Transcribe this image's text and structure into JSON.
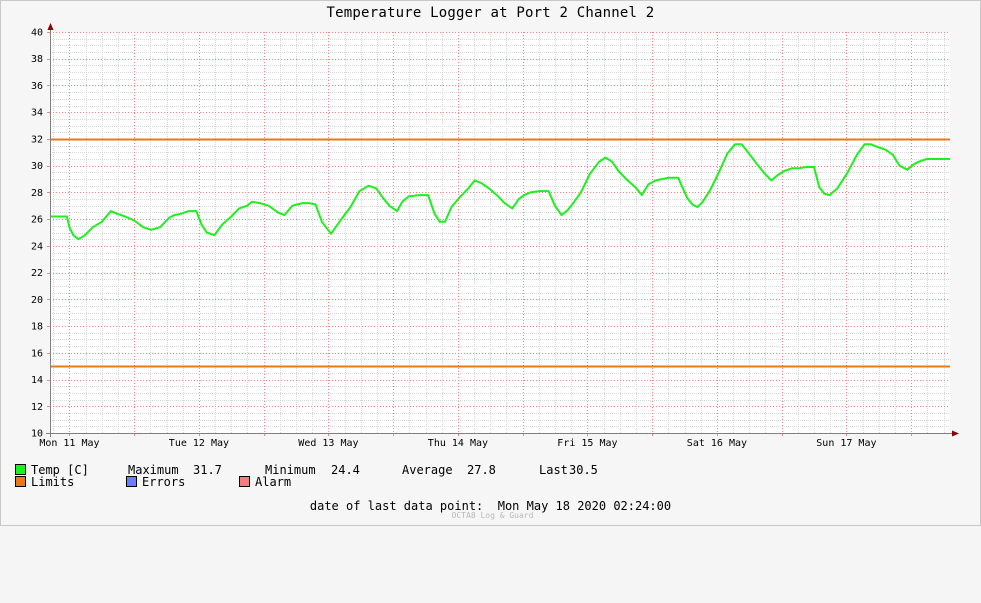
{
  "title": "Temperature Logger at Port 2 Channel 2",
  "colors": {
    "series": "#1ef01e",
    "limits": "#e87a1b",
    "errors": "#6a7fff",
    "alarm": "#f08080",
    "grid_major": "#ff8080",
    "grid_minor": "#d8d8d8",
    "axis": "#808080",
    "arrow": "#8b0000"
  },
  "legend": {
    "temp_label": "Temp [C]",
    "limits_label": "Limits",
    "errors_label": "Errors",
    "alarm_label": "Alarm"
  },
  "stats": {
    "max_label": "Maximum",
    "max_value": "31.7",
    "min_label": "Minimum",
    "min_value": "24.4",
    "avg_label": "Average",
    "avg_value": "27.8",
    "last_label": "Last",
    "last_value": "30.5"
  },
  "footer": {
    "last_date_label": "date of last data point:",
    "last_date_value": "Mon May 18 2020 02:24:00",
    "watermark": "OCTA8 Log & Guard"
  },
  "chart_data": {
    "type": "line",
    "title": "Temperature Logger at Port 2 Channel 2",
    "x_unit": "days from Mon May 11 00:00",
    "xlim": [
      -0.15,
      6.8
    ],
    "ylim": [
      10,
      40
    ],
    "y_ticks": [
      10,
      12,
      14,
      16,
      18,
      20,
      22,
      24,
      26,
      28,
      30,
      32,
      34,
      36,
      38,
      40
    ],
    "x_tick_labels": [
      "Mon 11 May",
      "Tue 12 May",
      "Wed 13 May",
      "Thu 14 May",
      "Fri 15 May",
      "Sat 16 May",
      "Sun 17 May"
    ],
    "x_tick_positions": [
      0,
      1,
      2,
      3,
      4,
      5,
      6
    ],
    "grid": true,
    "limits": [
      32,
      15
    ],
    "series": [
      {
        "name": "Temp [C]",
        "x": [
          -0.15,
          -0.02,
          0.0,
          0.03,
          0.07,
          0.12,
          0.18,
          0.25,
          0.32,
          0.37,
          0.43,
          0.5,
          0.57,
          0.63,
          0.7,
          0.77,
          0.81,
          0.86,
          0.92,
          0.98,
          1.02,
          1.06,
          1.12,
          1.18,
          1.25,
          1.31,
          1.37,
          1.41,
          1.47,
          1.54,
          1.61,
          1.66,
          1.72,
          1.76,
          1.8,
          1.85,
          1.9,
          1.95,
          2.02,
          2.1,
          2.17,
          2.24,
          2.31,
          2.37,
          2.42,
          2.47,
          2.53,
          2.57,
          2.62,
          2.7,
          2.77,
          2.82,
          2.86,
          2.9,
          2.95,
          3.02,
          3.08,
          3.13,
          3.18,
          3.24,
          3.3,
          3.36,
          3.42,
          3.47,
          3.51,
          3.56,
          3.63,
          3.7,
          3.75,
          3.8,
          3.85,
          3.89,
          3.95,
          4.02,
          4.09,
          4.14,
          4.19,
          4.24,
          4.31,
          4.37,
          4.42,
          4.47,
          4.53,
          4.58,
          4.63,
          4.7,
          4.77,
          4.81,
          4.85,
          4.89,
          4.95,
          5.02,
          5.08,
          5.14,
          5.19,
          5.24,
          5.31,
          5.37,
          5.42,
          5.47,
          5.52,
          5.58,
          5.63,
          5.69,
          5.75,
          5.79,
          5.83,
          5.87,
          5.93,
          6.01,
          6.08,
          6.14,
          6.19,
          6.24,
          6.3,
          6.36,
          6.41,
          6.47,
          6.52,
          6.56,
          6.59,
          6.62,
          6.66,
          6.72,
          6.8
        ],
        "values": [
          26.2,
          26.2,
          25.4,
          24.8,
          24.5,
          24.8,
          25.4,
          25.8,
          26.6,
          26.4,
          26.2,
          25.9,
          25.4,
          25.2,
          25.4,
          26.1,
          26.3,
          26.4,
          26.6,
          26.6,
          25.6,
          25.0,
          24.8,
          25.6,
          26.2,
          26.8,
          27.0,
          27.3,
          27.2,
          27.0,
          26.5,
          26.3,
          27.0,
          27.1,
          27.2,
          27.2,
          27.1,
          25.8,
          24.9,
          26.0,
          26.9,
          28.1,
          28.5,
          28.3,
          27.6,
          27.0,
          26.6,
          27.3,
          27.7,
          27.8,
          27.8,
          26.4,
          25.8,
          25.8,
          26.9,
          27.7,
          28.3,
          28.9,
          28.7,
          28.3,
          27.8,
          27.2,
          26.8,
          27.5,
          27.8,
          28.0,
          28.1,
          28.1,
          27.0,
          26.3,
          26.7,
          27.2,
          28.0,
          29.4,
          30.3,
          30.6,
          30.3,
          29.6,
          28.9,
          28.4,
          27.8,
          28.6,
          28.9,
          29.0,
          29.1,
          29.1,
          27.6,
          27.1,
          26.9,
          27.3,
          28.2,
          29.6,
          30.9,
          31.6,
          31.6,
          31.0,
          30.1,
          29.4,
          28.9,
          29.3,
          29.6,
          29.8,
          29.8,
          29.9,
          29.9,
          28.4,
          27.9,
          27.8,
          28.3,
          29.5,
          30.8,
          31.6,
          31.6,
          31.4,
          31.2,
          30.8,
          30.0,
          29.7,
          30.1,
          30.3,
          30.4,
          30.5,
          30.5,
          30.5,
          30.5
        ]
      }
    ]
  }
}
